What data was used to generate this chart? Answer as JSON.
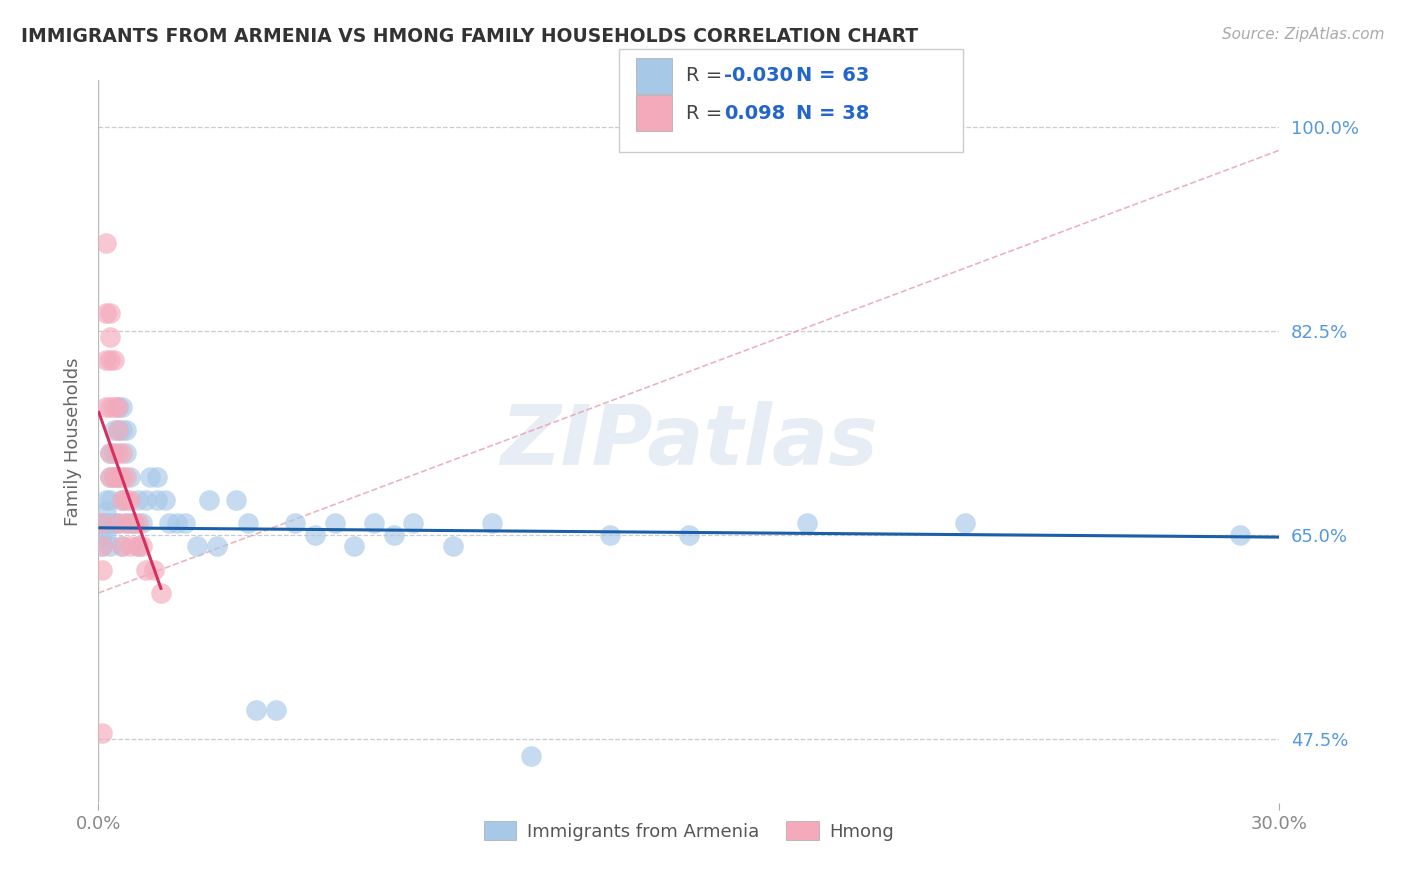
{
  "title": "IMMIGRANTS FROM ARMENIA VS HMONG FAMILY HOUSEHOLDS CORRELATION CHART",
  "source": "Source: ZipAtlas.com",
  "ylabel": "Family Households",
  "xlim": [
    0.0,
    0.3
  ],
  "ylim": [
    0.42,
    1.04
  ],
  "ytick_vals": [
    0.475,
    0.65,
    0.825,
    1.0
  ],
  "ytick_labels": [
    "47.5%",
    "65.0%",
    "82.5%",
    "100.0%"
  ],
  "xtick_vals": [
    0.0,
    0.3
  ],
  "xtick_labels": [
    "0.0%",
    "30.0%"
  ],
  "legend_r_armenia": "-0.030",
  "legend_n_armenia": "63",
  "legend_r_hmong": "0.098",
  "legend_n_hmong": "38",
  "armenia_color": "#a8c8e8",
  "hmong_color": "#f4aabb",
  "armenia_line_color": "#1a5fa8",
  "hmong_line_color": "#d43060",
  "ref_line_color": "#e8b0b8",
  "watermark": "ZIPatlas",
  "armenia_x": [
    0.001,
    0.001,
    0.001,
    0.002,
    0.002,
    0.002,
    0.002,
    0.003,
    0.003,
    0.003,
    0.003,
    0.003,
    0.004,
    0.004,
    0.004,
    0.004,
    0.005,
    0.005,
    0.005,
    0.005,
    0.006,
    0.006,
    0.006,
    0.006,
    0.007,
    0.007,
    0.007,
    0.008,
    0.008,
    0.009,
    0.01,
    0.01,
    0.011,
    0.012,
    0.013,
    0.015,
    0.015,
    0.017,
    0.018,
    0.02,
    0.022,
    0.025,
    0.028,
    0.03,
    0.035,
    0.038,
    0.04,
    0.045,
    0.05,
    0.055,
    0.06,
    0.065,
    0.07,
    0.075,
    0.08,
    0.09,
    0.1,
    0.11,
    0.13,
    0.15,
    0.18,
    0.22,
    0.29
  ],
  "armenia_y": [
    0.66,
    0.65,
    0.64,
    0.68,
    0.67,
    0.66,
    0.65,
    0.72,
    0.7,
    0.68,
    0.66,
    0.64,
    0.74,
    0.72,
    0.7,
    0.66,
    0.76,
    0.74,
    0.7,
    0.66,
    0.76,
    0.74,
    0.68,
    0.64,
    0.74,
    0.72,
    0.66,
    0.7,
    0.66,
    0.66,
    0.68,
    0.64,
    0.66,
    0.68,
    0.7,
    0.7,
    0.68,
    0.68,
    0.66,
    0.66,
    0.66,
    0.64,
    0.68,
    0.64,
    0.68,
    0.66,
    0.5,
    0.5,
    0.66,
    0.65,
    0.66,
    0.64,
    0.66,
    0.65,
    0.66,
    0.64,
    0.66,
    0.46,
    0.65,
    0.65,
    0.66,
    0.66,
    0.65
  ],
  "hmong_x": [
    0.001,
    0.001,
    0.001,
    0.001,
    0.002,
    0.002,
    0.002,
    0.002,
    0.003,
    0.003,
    0.003,
    0.003,
    0.003,
    0.003,
    0.004,
    0.004,
    0.004,
    0.005,
    0.005,
    0.005,
    0.005,
    0.005,
    0.006,
    0.006,
    0.006,
    0.006,
    0.007,
    0.007,
    0.007,
    0.008,
    0.008,
    0.009,
    0.01,
    0.01,
    0.011,
    0.012,
    0.014,
    0.016
  ],
  "hmong_y": [
    0.66,
    0.64,
    0.62,
    0.48,
    0.9,
    0.84,
    0.8,
    0.76,
    0.84,
    0.82,
    0.8,
    0.76,
    0.72,
    0.7,
    0.8,
    0.76,
    0.7,
    0.76,
    0.74,
    0.72,
    0.7,
    0.66,
    0.72,
    0.7,
    0.68,
    0.64,
    0.7,
    0.68,
    0.66,
    0.68,
    0.64,
    0.66,
    0.66,
    0.64,
    0.64,
    0.62,
    0.62,
    0.6
  ]
}
